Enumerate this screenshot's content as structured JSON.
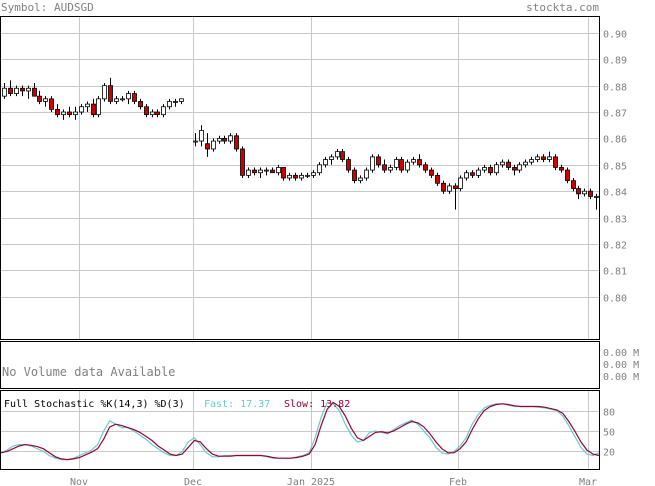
{
  "header": {
    "symbol_label": "Symbol: AUDSGD",
    "brand": "stockta.com"
  },
  "colors": {
    "grid": "#c8c8c8",
    "frame": "#000000",
    "header_text": "#808080",
    "bull_body": "#ffffff",
    "bear_body": "#cc0000",
    "fast_line": "#66cccc",
    "slow_line": "#990033",
    "fast_text": "#66cccc",
    "slow_text": "#990033"
  },
  "volume": {
    "message": "No Volume data Available",
    "axis_labels": [
      "0.00 M",
      "0.00 M",
      "0.00 M"
    ]
  },
  "stochastic": {
    "title": "Full Stochastic %K(14,3) %D(3)",
    "fast_label": "Fast: 17.37",
    "slow_label": "Slow: 13.82",
    "axis_labels": [
      "80",
      "50",
      "20"
    ]
  },
  "chart_data": [
    {
      "type": "candlestick",
      "title": "Symbol: AUDSGD",
      "x_tick_labels": [
        "Nov",
        "Dec",
        "Jan 2025",
        "Feb",
        "Mar"
      ],
      "y_tick_labels": [
        "0.90",
        "0.89",
        "0.88",
        "0.87",
        "0.86",
        "0.85",
        "0.84",
        "0.83",
        "0.82",
        "0.81",
        "0.80"
      ],
      "ylim": [
        0.784,
        0.906
      ],
      "grid": true,
      "candles": [
        [
          0.876,
          0.881,
          0.875,
          0.879
        ],
        [
          0.879,
          0.882,
          0.876,
          0.877
        ],
        [
          0.877,
          0.88,
          0.876,
          0.879
        ],
        [
          0.879,
          0.88,
          0.876,
          0.878
        ],
        [
          0.878,
          0.88,
          0.875,
          0.879
        ],
        [
          0.879,
          0.881,
          0.876,
          0.876
        ],
        [
          0.876,
          0.878,
          0.873,
          0.874
        ],
        [
          0.874,
          0.876,
          0.872,
          0.875
        ],
        [
          0.875,
          0.876,
          0.87,
          0.871
        ],
        [
          0.871,
          0.873,
          0.868,
          0.869
        ],
        [
          0.869,
          0.871,
          0.867,
          0.87
        ],
        [
          0.87,
          0.872,
          0.868,
          0.869
        ],
        [
          0.869,
          0.872,
          0.867,
          0.87
        ],
        [
          0.87,
          0.873,
          0.869,
          0.872
        ],
        [
          0.872,
          0.874,
          0.87,
          0.873
        ],
        [
          0.873,
          0.875,
          0.868,
          0.869
        ],
        [
          0.869,
          0.876,
          0.868,
          0.875
        ],
        [
          0.875,
          0.881,
          0.874,
          0.88
        ],
        [
          0.88,
          0.883,
          0.873,
          0.874
        ],
        [
          0.874,
          0.876,
          0.873,
          0.875
        ],
        [
          0.875,
          0.876,
          0.874,
          0.875
        ],
        [
          0.875,
          0.878,
          0.873,
          0.877
        ],
        [
          0.877,
          0.878,
          0.873,
          0.874
        ],
        [
          0.874,
          0.875,
          0.871,
          0.872
        ],
        [
          0.872,
          0.873,
          0.868,
          0.869
        ],
        [
          0.869,
          0.871,
          0.868,
          0.87
        ],
        [
          0.87,
          0.871,
          0.868,
          0.869
        ],
        [
          0.869,
          0.873,
          0.868,
          0.872
        ],
        [
          0.872,
          0.875,
          0.871,
          0.874
        ],
        [
          0.874,
          0.875,
          0.872,
          0.874
        ],
        [
          0.874,
          0.875,
          0.873,
          0.875
        ],
        [
          0.859,
          0.862,
          0.857,
          0.859
        ],
        [
          0.859,
          0.865,
          0.857,
          0.863
        ],
        [
          0.858,
          0.862,
          0.853,
          0.856
        ],
        [
          0.856,
          0.86,
          0.855,
          0.859
        ],
        [
          0.859,
          0.861,
          0.858,
          0.86
        ],
        [
          0.86,
          0.861,
          0.858,
          0.859
        ],
        [
          0.859,
          0.862,
          0.858,
          0.861
        ],
        [
          0.861,
          0.862,
          0.855,
          0.856
        ],
        [
          0.856,
          0.857,
          0.845,
          0.846
        ],
        [
          0.846,
          0.849,
          0.845,
          0.848
        ],
        [
          0.848,
          0.849,
          0.846,
          0.847
        ],
        [
          0.847,
          0.849,
          0.845,
          0.848
        ],
        [
          0.848,
          0.849,
          0.846,
          0.848
        ],
        [
          0.848,
          0.849,
          0.847,
          0.847
        ],
        [
          0.847,
          0.85,
          0.846,
          0.849
        ],
        [
          0.849,
          0.849,
          0.844,
          0.845
        ],
        [
          0.845,
          0.847,
          0.844,
          0.846
        ],
        [
          0.846,
          0.847,
          0.844,
          0.845
        ],
        [
          0.845,
          0.847,
          0.844,
          0.846
        ],
        [
          0.846,
          0.847,
          0.845,
          0.846
        ],
        [
          0.846,
          0.848,
          0.845,
          0.847
        ],
        [
          0.847,
          0.851,
          0.846,
          0.85
        ],
        [
          0.85,
          0.853,
          0.849,
          0.852
        ],
        [
          0.852,
          0.854,
          0.85,
          0.853
        ],
        [
          0.853,
          0.856,
          0.852,
          0.855
        ],
        [
          0.855,
          0.856,
          0.851,
          0.852
        ],
        [
          0.852,
          0.853,
          0.847,
          0.848
        ],
        [
          0.848,
          0.849,
          0.843,
          0.844
        ],
        [
          0.844,
          0.846,
          0.843,
          0.845
        ],
        [
          0.845,
          0.849,
          0.844,
          0.848
        ],
        [
          0.848,
          0.854,
          0.847,
          0.853
        ],
        [
          0.853,
          0.854,
          0.849,
          0.85
        ],
        [
          0.85,
          0.852,
          0.847,
          0.848
        ],
        [
          0.848,
          0.85,
          0.847,
          0.849
        ],
        [
          0.849,
          0.853,
          0.848,
          0.852
        ],
        [
          0.852,
          0.853,
          0.847,
          0.848
        ],
        [
          0.848,
          0.852,
          0.847,
          0.851
        ],
        [
          0.851,
          0.853,
          0.85,
          0.852
        ],
        [
          0.852,
          0.854,
          0.849,
          0.85
        ],
        [
          0.85,
          0.851,
          0.847,
          0.848
        ],
        [
          0.848,
          0.849,
          0.845,
          0.846
        ],
        [
          0.846,
          0.847,
          0.842,
          0.843
        ],
        [
          0.843,
          0.844,
          0.839,
          0.84
        ],
        [
          0.84,
          0.843,
          0.839,
          0.842
        ],
        [
          0.842,
          0.843,
          0.833,
          0.841
        ],
        [
          0.841,
          0.846,
          0.84,
          0.845
        ],
        [
          0.845,
          0.848,
          0.844,
          0.847
        ],
        [
          0.847,
          0.848,
          0.845,
          0.846
        ],
        [
          0.846,
          0.849,
          0.845,
          0.848
        ],
        [
          0.848,
          0.85,
          0.847,
          0.849
        ],
        [
          0.849,
          0.85,
          0.846,
          0.847
        ],
        [
          0.847,
          0.851,
          0.846,
          0.85
        ],
        [
          0.85,
          0.852,
          0.849,
          0.851
        ],
        [
          0.851,
          0.852,
          0.848,
          0.849
        ],
        [
          0.849,
          0.85,
          0.846,
          0.848
        ],
        [
          0.848,
          0.851,
          0.847,
          0.85
        ],
        [
          0.85,
          0.852,
          0.849,
          0.851
        ],
        [
          0.851,
          0.853,
          0.85,
          0.852
        ],
        [
          0.852,
          0.854,
          0.851,
          0.853
        ],
        [
          0.853,
          0.854,
          0.851,
          0.852
        ],
        [
          0.852,
          0.855,
          0.851,
          0.853
        ],
        [
          0.853,
          0.854,
          0.848,
          0.849
        ],
        [
          0.849,
          0.85,
          0.847,
          0.848
        ],
        [
          0.848,
          0.849,
          0.843,
          0.844
        ],
        [
          0.844,
          0.845,
          0.84,
          0.841
        ],
        [
          0.841,
          0.842,
          0.837,
          0.839
        ],
        [
          0.839,
          0.841,
          0.838,
          0.84
        ],
        [
          0.84,
          0.841,
          0.837,
          0.838
        ],
        [
          0.838,
          0.839,
          0.833,
          0.838
        ]
      ]
    },
    {
      "type": "line",
      "title": "Full Stochastic %K(14,3) %D(3)",
      "ylim": [
        0,
        100
      ],
      "y_tick_labels": [
        "80",
        "50",
        "20"
      ],
      "series": [
        {
          "name": "Fast",
          "values": [
            18,
            22,
            28,
            30,
            30,
            28,
            24,
            20,
            14,
            10,
            8,
            8,
            10,
            14,
            18,
            22,
            30,
            50,
            65,
            60,
            55,
            55,
            50,
            44,
            38,
            30,
            24,
            18,
            14,
            14,
            20,
            34,
            40,
            30,
            18,
            12,
            12,
            14,
            14,
            14,
            14,
            14,
            14,
            14,
            12,
            10,
            10,
            10,
            10,
            12,
            14,
            18,
            40,
            70,
            92,
            90,
            80,
            60,
            44,
            34,
            36,
            48,
            50,
            48,
            46,
            52,
            58,
            62,
            66,
            60,
            50,
            40,
            26,
            18,
            16,
            20,
            28,
            40,
            60,
            74,
            84,
            88,
            90,
            90,
            88,
            86,
            86,
            86,
            86,
            85,
            84,
            82,
            80,
            72,
            58,
            42,
            26,
            16,
            14,
            18
          ]
        },
        {
          "name": "Slow",
          "values": [
            18,
            20,
            24,
            28,
            30,
            29,
            27,
            24,
            18,
            12,
            9,
            8,
            9,
            11,
            15,
            19,
            24,
            38,
            56,
            60,
            58,
            55,
            52,
            48,
            42,
            36,
            28,
            22,
            16,
            14,
            16,
            26,
            36,
            34,
            24,
            16,
            13,
            13,
            13,
            14,
            14,
            14,
            14,
            14,
            13,
            11,
            10,
            10,
            10,
            11,
            13,
            16,
            30,
            58,
            82,
            92,
            86,
            72,
            54,
            40,
            36,
            42,
            48,
            49,
            47,
            50,
            55,
            60,
            64,
            62,
            56,
            46,
            34,
            24,
            18,
            18,
            24,
            34,
            52,
            68,
            80,
            86,
            89,
            90,
            89,
            87,
            86,
            86,
            86,
            86,
            85,
            83,
            81,
            76,
            64,
            50,
            34,
            22,
            16,
            14
          ]
        }
      ]
    }
  ]
}
